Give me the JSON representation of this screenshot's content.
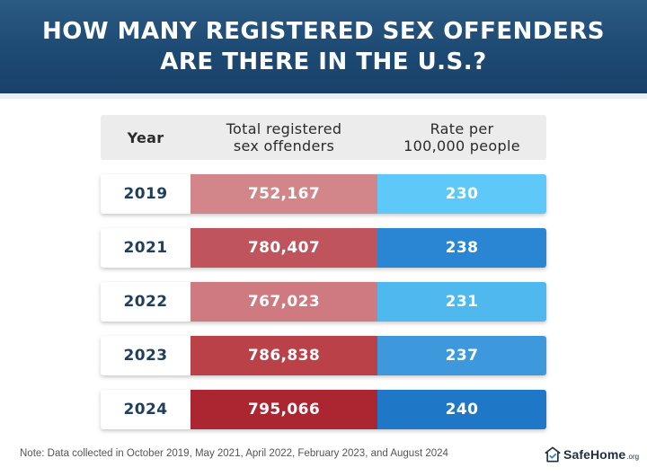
{
  "title_line1": "HOW MANY REGISTERED SEX OFFENDERS",
  "title_line2": "ARE THERE IN THE U.S.?",
  "chart_data": {
    "type": "table",
    "columns": [
      "Year",
      "Total registered sex offenders",
      "Rate per 100,000 people"
    ],
    "rows": [
      {
        "year": "2019",
        "total": "752,167",
        "rate": "230",
        "total_color": "#d3868a",
        "rate_color": "#5ec8f8"
      },
      {
        "year": "2021",
        "total": "780,407",
        "rate": "238",
        "total_color": "#c0545d",
        "rate_color": "#2a86d3"
      },
      {
        "year": "2022",
        "total": "767,023",
        "rate": "231",
        "total_color": "#cf7a80",
        "rate_color": "#4fb9ef"
      },
      {
        "year": "2023",
        "total": "786,838",
        "rate": "237",
        "total_color": "#bb4149",
        "rate_color": "#3d99dc"
      },
      {
        "year": "2024",
        "total": "795,066",
        "rate": "240",
        "total_color": "#ab2630",
        "rate_color": "#1f77c8"
      }
    ]
  },
  "note": "Note: Data collected in October 2019, May 2021, April 2022, February 2023, and August 2024",
  "brand": {
    "name": "SafeHome",
    "tld": ".org",
    "icon": "house-shield-icon"
  },
  "colors": {
    "header_bg": "#1d4a73",
    "header_text": "#ffffff",
    "year_text": "#1f3f5c"
  }
}
